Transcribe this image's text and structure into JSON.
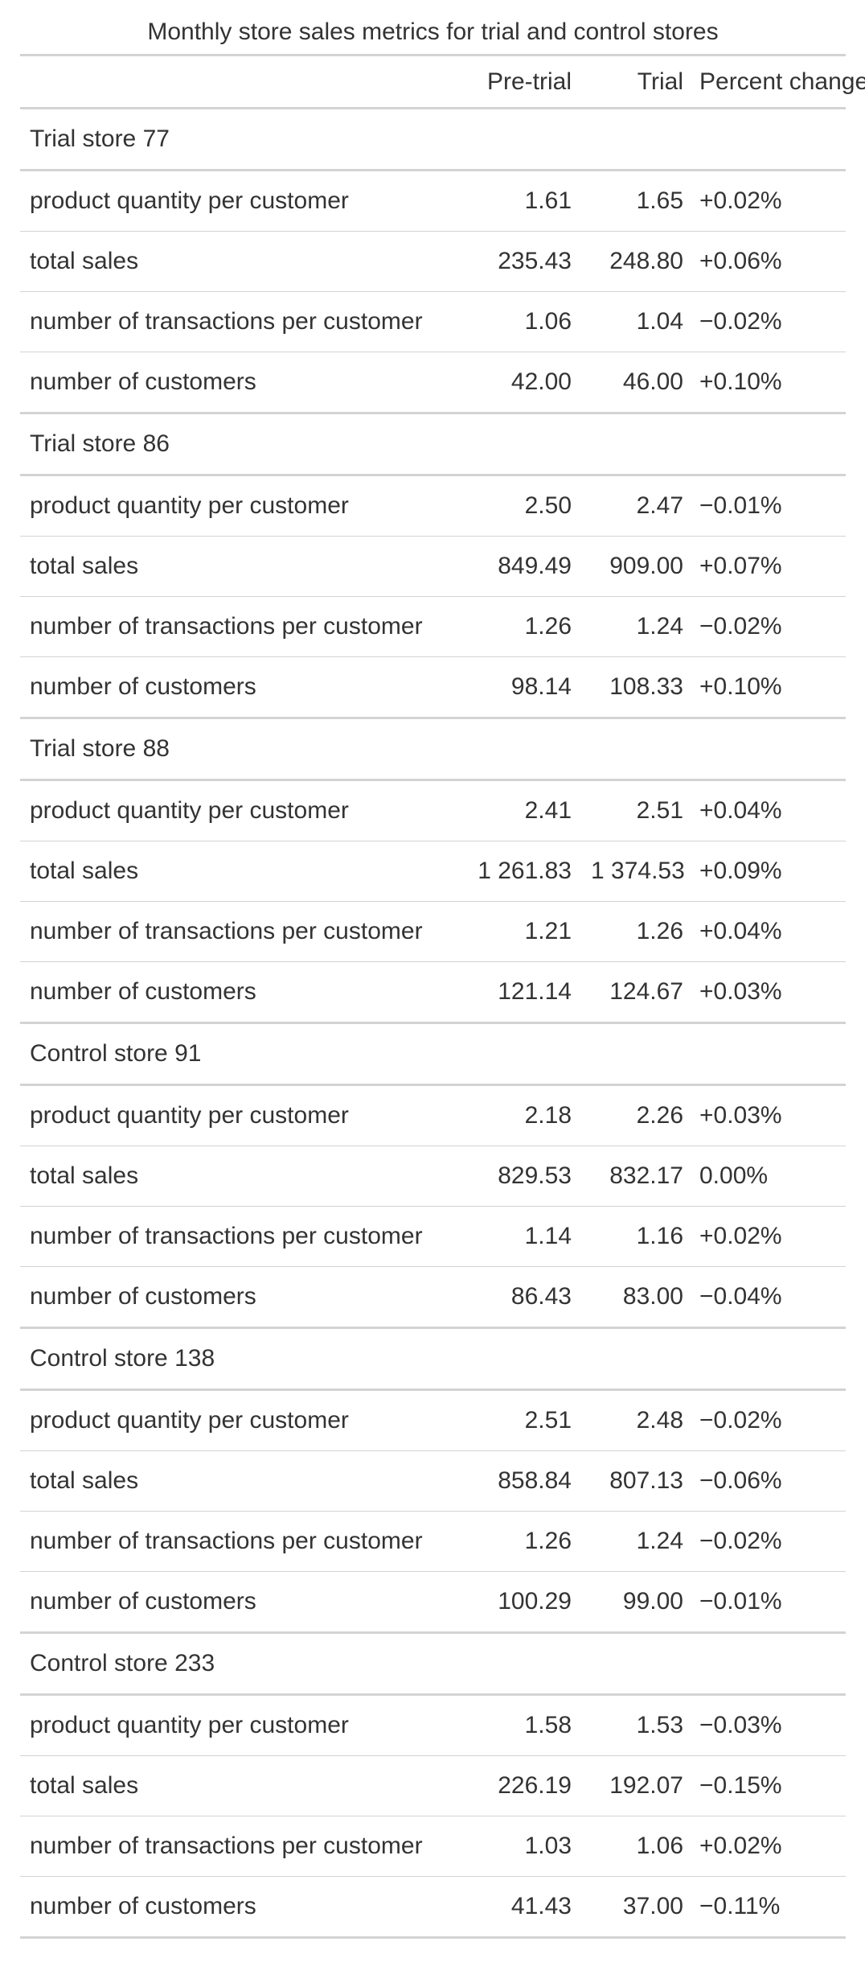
{
  "title": "Monthly store sales metrics for trial and control stores",
  "columns": {
    "label": "",
    "pre_trial": "Pre-trial",
    "trial": "Trial",
    "percent_change": "Percent change"
  },
  "groups": [
    {
      "name": "Trial store 77",
      "rows": [
        {
          "metric": "product quantity per customer",
          "pre_trial": "1.61",
          "trial": "1.65",
          "percent_change": "+0.02%"
        },
        {
          "metric": "total sales",
          "pre_trial": "235.43",
          "trial": "248.80",
          "percent_change": "+0.06%"
        },
        {
          "metric": "number of transactions per customer",
          "pre_trial": "1.06",
          "trial": "1.04",
          "percent_change": "−0.02%"
        },
        {
          "metric": "number of customers",
          "pre_trial": "42.00",
          "trial": "46.00",
          "percent_change": "+0.10%"
        }
      ]
    },
    {
      "name": "Trial store 86",
      "rows": [
        {
          "metric": "product quantity per customer",
          "pre_trial": "2.50",
          "trial": "2.47",
          "percent_change": "−0.01%"
        },
        {
          "metric": "total sales",
          "pre_trial": "849.49",
          "trial": "909.00",
          "percent_change": "+0.07%"
        },
        {
          "metric": "number of transactions per customer",
          "pre_trial": "1.26",
          "trial": "1.24",
          "percent_change": "−0.02%"
        },
        {
          "metric": "number of customers",
          "pre_trial": "98.14",
          "trial": "108.33",
          "percent_change": "+0.10%"
        }
      ]
    },
    {
      "name": "Trial store 88",
      "rows": [
        {
          "metric": "product quantity per customer",
          "pre_trial": "2.41",
          "trial": "2.51",
          "percent_change": "+0.04%"
        },
        {
          "metric": "total sales",
          "pre_trial": "1 261.83",
          "trial": "1 374.53",
          "percent_change": "+0.09%"
        },
        {
          "metric": "number of transactions per customer",
          "pre_trial": "1.21",
          "trial": "1.26",
          "percent_change": "+0.04%"
        },
        {
          "metric": "number of customers",
          "pre_trial": "121.14",
          "trial": "124.67",
          "percent_change": "+0.03%"
        }
      ]
    },
    {
      "name": "Control store 91",
      "rows": [
        {
          "metric": "product quantity per customer",
          "pre_trial": "2.18",
          "trial": "2.26",
          "percent_change": "+0.03%"
        },
        {
          "metric": "total sales",
          "pre_trial": "829.53",
          "trial": "832.17",
          "percent_change": "0.00%"
        },
        {
          "metric": "number of transactions per customer",
          "pre_trial": "1.14",
          "trial": "1.16",
          "percent_change": "+0.02%"
        },
        {
          "metric": "number of customers",
          "pre_trial": "86.43",
          "trial": "83.00",
          "percent_change": "−0.04%"
        }
      ]
    },
    {
      "name": "Control store 138",
      "rows": [
        {
          "metric": "product quantity per customer",
          "pre_trial": "2.51",
          "trial": "2.48",
          "percent_change": "−0.02%"
        },
        {
          "metric": "total sales",
          "pre_trial": "858.84",
          "trial": "807.13",
          "percent_change": "−0.06%"
        },
        {
          "metric": "number of transactions per customer",
          "pre_trial": "1.26",
          "trial": "1.24",
          "percent_change": "−0.02%"
        },
        {
          "metric": "number of customers",
          "pre_trial": "100.29",
          "trial": "99.00",
          "percent_change": "−0.01%"
        }
      ]
    },
    {
      "name": "Control store 233",
      "rows": [
        {
          "metric": "product quantity per customer",
          "pre_trial": "1.58",
          "trial": "1.53",
          "percent_change": "−0.03%"
        },
        {
          "metric": "total sales",
          "pre_trial": "226.19",
          "trial": "192.07",
          "percent_change": "−0.15%"
        },
        {
          "metric": "number of transactions per customer",
          "pre_trial": "1.03",
          "trial": "1.06",
          "percent_change": "+0.02%"
        },
        {
          "metric": "number of customers",
          "pre_trial": "41.43",
          "trial": "37.00",
          "percent_change": "−0.11%"
        }
      ]
    }
  ]
}
